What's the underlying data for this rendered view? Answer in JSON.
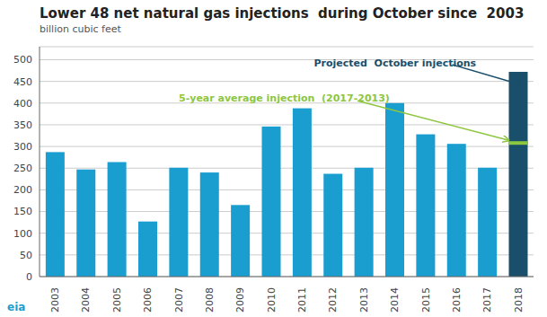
{
  "chart_data": {
    "type": "bar",
    "title": "Lower 48 net natural gas injections  during October since  2003",
    "subtitle": "billion cubic feet",
    "categories": [
      "2003",
      "2004",
      "2005",
      "2006",
      "2007",
      "2008",
      "2009",
      "2010",
      "2011",
      "2012",
      "2013",
      "2014",
      "2015",
      "2016",
      "2017",
      "2018"
    ],
    "values": [
      287,
      247,
      264,
      127,
      251,
      240,
      165,
      346,
      388,
      237,
      251,
      400,
      328,
      306,
      251,
      472
    ],
    "colors": [
      "#1a9ed0",
      "#1a9ed0",
      "#1a9ed0",
      "#1a9ed0",
      "#1a9ed0",
      "#1a9ed0",
      "#1a9ed0",
      "#1a9ed0",
      "#1a9ed0",
      "#1a9ed0",
      "#1a9ed0",
      "#1a9ed0",
      "#1a9ed0",
      "#1a9ed0",
      "#1a9ed0",
      "#1a4f6b"
    ],
    "average": {
      "value": 308,
      "color": "#8dc63f"
    },
    "annotations": [
      {
        "text": "Projected  October injections",
        "color": "#1a4f6b"
      },
      {
        "text": "5-year average injection  (2017-2013)",
        "color": "#8dc63f"
      },
      {
        "text": "eia",
        "color": "#1a9ed0"
      }
    ],
    "ylim": [
      0,
      530
    ],
    "yticks": [
      0,
      50,
      100,
      150,
      200,
      250,
      300,
      350,
      400,
      450,
      500
    ],
    "grid": true
  }
}
